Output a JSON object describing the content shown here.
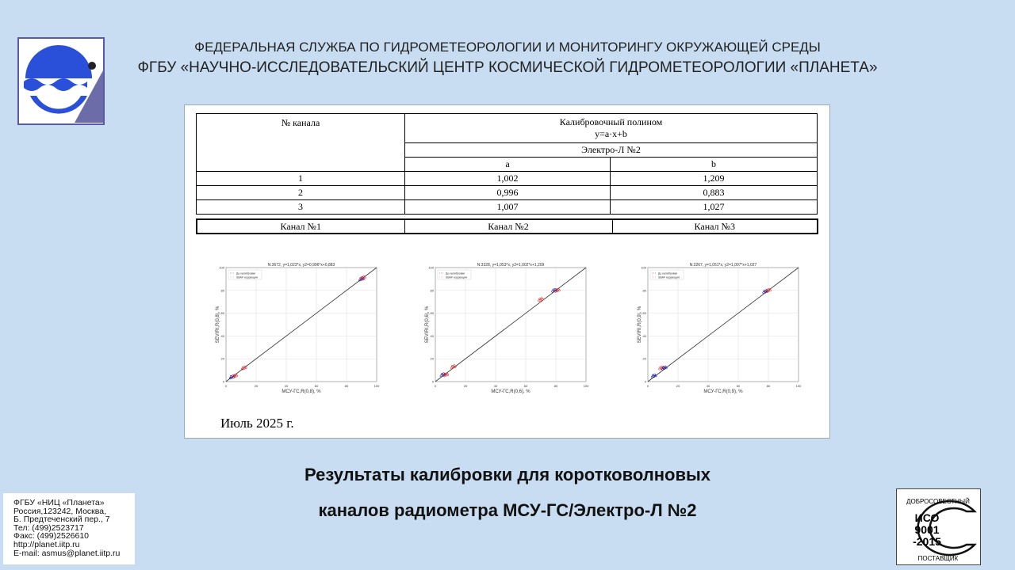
{
  "header": {
    "line1": "ФЕДЕРАЛЬНАЯ СЛУЖБА ПО ГИДРОМЕТЕОРОЛОГИИ И МОНИТОРИНГУ ОКРУЖАЮЩЕЙ СРЕДЫ",
    "line2": "ФГБУ «НАУЧНО-ИССЛЕДОВАТЕЛЬСКИЙ ЦЕНТР КОСМИЧЕСКОЙ ГИДРОМЕТЕОРОЛОГИИ «ПЛАНЕТА»"
  },
  "colors": {
    "background": "#c8ddf1",
    "logo_blue": "#2a4fd8",
    "before": "#1a1aa8",
    "after": "#e03030"
  },
  "table": {
    "col_channel": "№ канала",
    "col_poly": "Калибровочный полином",
    "formula": "y=a·x+b",
    "satellite": "Электро-Л №2",
    "col_a": "a",
    "col_b": "b",
    "rows": [
      {
        "ch": "1",
        "a": "1,002",
        "b": "1,209"
      },
      {
        "ch": "2",
        "a": "0,996",
        "b": "0,883"
      },
      {
        "ch": "3",
        "a": "1,007",
        "b": "1,027"
      }
    ]
  },
  "channels": [
    "Канал №1",
    "Канал №2",
    "Канал №3"
  ],
  "chart_data": [
    {
      "type": "scatter",
      "title": "N:3672, y=1,023*x, y2=0,996*x+0,883",
      "xlabel": "МСУ-ГС,R(0,8), %",
      "ylabel": "SEVIRI,R(0,8), %",
      "xlim": [
        0,
        100
      ],
      "ylim": [
        0,
        100
      ],
      "ticks": [
        "0",
        "20",
        "40",
        "60",
        "80",
        "100"
      ],
      "grid": true,
      "legend": "top-left",
      "legend_entries": [
        "До калибровки",
        "SBAF коррекция"
      ],
      "clusters": [
        {
          "x": 4,
          "y": 4,
          "c": "before"
        },
        {
          "x": 6,
          "y": 5,
          "c": "after"
        },
        {
          "x": 12,
          "y": 12,
          "c": "after"
        },
        {
          "x": 90,
          "y": 90,
          "c": "before"
        },
        {
          "x": 91,
          "y": 91,
          "c": "after"
        }
      ]
    },
    {
      "type": "scatter",
      "title": "N:3328, y=1,053*x, y2=1,002*x+1,209",
      "xlabel": "МСУ-ГС,R(0,6), %",
      "ylabel": "SEVIRI,R(0,6), %",
      "xlim": [
        0,
        100
      ],
      "ylim": [
        0,
        100
      ],
      "ticks": [
        "0",
        "20",
        "40",
        "60",
        "80",
        "100"
      ],
      "grid": true,
      "legend": "top-left",
      "legend_entries": [
        "До калибровки",
        "SBAF коррекция"
      ],
      "clusters": [
        {
          "x": 5,
          "y": 6,
          "c": "before"
        },
        {
          "x": 7,
          "y": 6,
          "c": "after"
        },
        {
          "x": 12,
          "y": 13,
          "c": "after"
        },
        {
          "x": 70,
          "y": 72,
          "c": "after"
        },
        {
          "x": 79,
          "y": 80,
          "c": "before"
        },
        {
          "x": 81,
          "y": 80,
          "c": "after"
        }
      ]
    },
    {
      "type": "scatter",
      "title": "N:3267, y=1,051*x, y2=1,007*x+1,027",
      "xlabel": "МСУ-ГС,R(0,9), %",
      "ylabel": "SEVIRI,R(0,9), %",
      "xlim": [
        0,
        100
      ],
      "ylim": [
        0,
        100
      ],
      "ticks": [
        "0",
        "20",
        "40",
        "60",
        "80",
        "100"
      ],
      "grid": true,
      "legend": "top-left",
      "legend_entries": [
        "До калибровки",
        "SBAF коррекция"
      ],
      "clusters": [
        {
          "x": 4,
          "y": 5,
          "c": "before"
        },
        {
          "x": 9,
          "y": 12,
          "c": "after"
        },
        {
          "x": 11,
          "y": 12,
          "c": "before"
        },
        {
          "x": 78,
          "y": 79,
          "c": "before"
        },
        {
          "x": 80,
          "y": 80,
          "c": "after"
        }
      ]
    }
  ],
  "date": "Июль 2025 г.",
  "title": {
    "line1": "Результаты калибровки для коротковолновых",
    "line2": "каналов радиометра МСУ-ГС/Электро-Л №2"
  },
  "address": [
    "ФГБУ «НИЦ «Планета»",
    "Россия,123242, Москва,",
    "Б. Предтеченский пер., 7",
    "Тел:   (499)2523717",
    "Факс: (499)2526610",
    "http://planet.iitp.ru",
    "E-mail: asmus@planet.iitp.ru"
  ],
  "iso": {
    "top": "ДОБРОСОВЕСТНЫЙ",
    "mid1": "ИСО",
    "mid2": "9001",
    "mid3": "-2015",
    "bottom": "ПОСТАВЩИК"
  }
}
